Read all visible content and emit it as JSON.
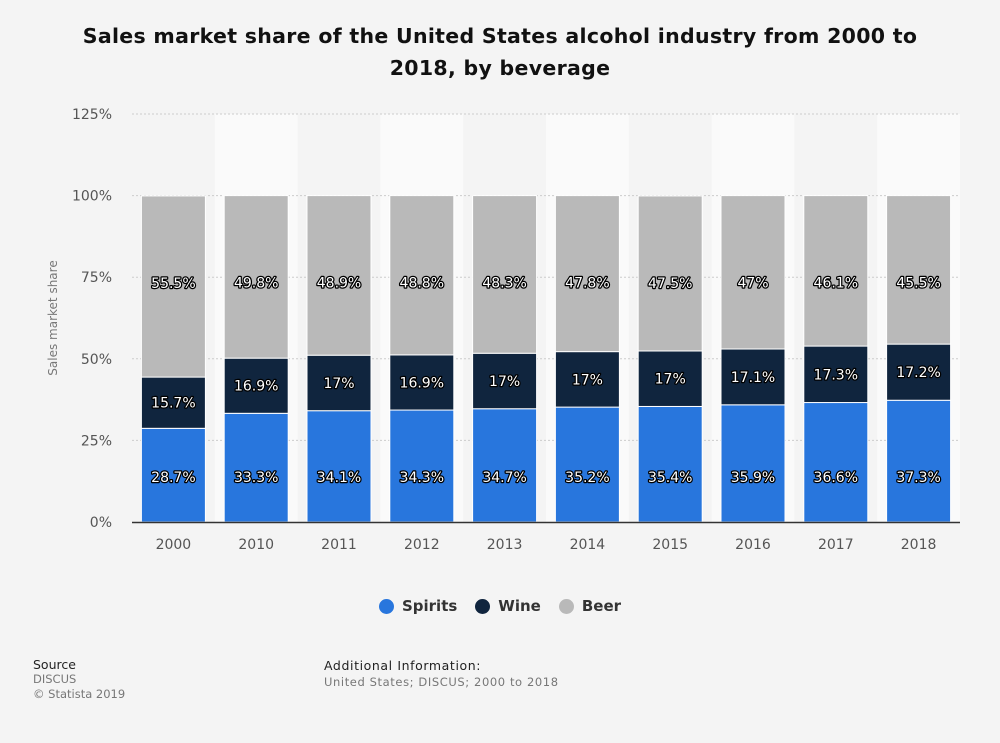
{
  "chart_data": {
    "type": "bar",
    "stacked": true,
    "title": "Sales market share of the United States alcohol industry from 2000 to 2018, by beverage",
    "xlabel": "",
    "ylabel": "Sales market share",
    "ylim": [
      0,
      125
    ],
    "yticks": [
      "0%",
      "25%",
      "50%",
      "75%",
      "100%",
      "125%"
    ],
    "grid": true,
    "legend_position": "bottom",
    "categories": [
      "2000",
      "2010",
      "2011",
      "2012",
      "2013",
      "2014",
      "2015",
      "2016",
      "2017",
      "2018"
    ],
    "series": [
      {
        "name": "Spirits",
        "color": "#2876dd",
        "values": [
          28.7,
          33.3,
          34.1,
          34.3,
          34.7,
          35.2,
          35.4,
          35.9,
          36.6,
          37.3
        ]
      },
      {
        "name": "Wine",
        "color": "#10253e",
        "values": [
          15.7,
          16.9,
          17,
          16.9,
          17,
          17,
          17,
          17.1,
          17.3,
          17.2
        ]
      },
      {
        "name": "Beer",
        "color": "#b9b9b9",
        "values": [
          55.5,
          49.8,
          48.9,
          48.8,
          48.3,
          47.8,
          47.5,
          47,
          46.1,
          45.5
        ]
      }
    ]
  },
  "source": {
    "label": "Source",
    "lines": [
      "DISCUS",
      "© Statista 2019"
    ]
  },
  "additional_info": {
    "label": "Additional Information:",
    "text": "United States; DISCUS; 2000 to 2018"
  }
}
